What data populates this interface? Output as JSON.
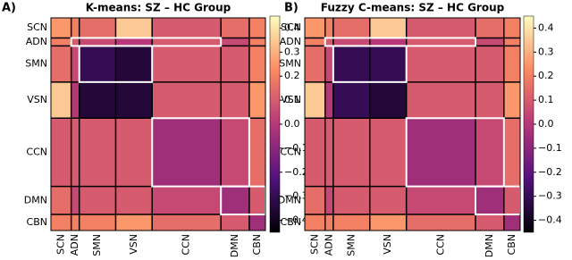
{
  "chart_data": [
    {
      "type": "heatmap",
      "panel_label": "A)",
      "title": "K-means: SZ – HC Group",
      "categories": [
        "SCN",
        "ADN",
        "SMN",
        "VSN",
        "CCN",
        "DMN",
        "CBN"
      ],
      "values": [
        [
          0.25,
          0.2,
          0.15,
          0.35,
          0.1,
          0.15,
          0.2
        ],
        [
          0.2,
          0.1,
          0.05,
          0.0,
          0.1,
          0.05,
          0.2
        ],
        [
          0.15,
          0.05,
          -0.3,
          -0.35,
          0.1,
          0.1,
          0.2
        ],
        [
          0.35,
          0.0,
          -0.35,
          -0.35,
          0.1,
          0.1,
          0.25
        ],
        [
          0.1,
          0.1,
          0.1,
          0.1,
          -0.05,
          0.05,
          0.15
        ],
        [
          0.15,
          0.05,
          0.1,
          0.1,
          0.05,
          -0.05,
          0.1
        ],
        [
          0.2,
          0.2,
          0.2,
          0.25,
          0.15,
          0.1,
          -0.05
        ]
      ],
      "zlim": [
        -0.45,
        0.45
      ],
      "zticks": [
        0.4,
        0.3,
        0.2,
        0.1,
        {
          "value": 0,
          "label": "0.0"
        },
        {
          "value": -0.1,
          "label": "−0.1"
        },
        {
          "value": -0.2,
          "label": "−0.2"
        },
        {
          "value": -0.3,
          "label": "−0.3"
        },
        {
          "value": -0.4,
          "label": "−0.4"
        }
      ]
    },
    {
      "type": "heatmap",
      "panel_label": "B)",
      "title": "Fuzzy C-means: SZ – HC Group",
      "categories": [
        "SCN",
        "ADN",
        "SMN",
        "VSN",
        "CCN",
        "DMN",
        "CBN"
      ],
      "values": [
        [
          0.25,
          0.2,
          0.15,
          0.35,
          0.1,
          0.15,
          0.2
        ],
        [
          0.2,
          0.1,
          0.05,
          0.0,
          0.1,
          0.05,
          0.2
        ],
        [
          0.15,
          0.05,
          -0.3,
          -0.3,
          0.1,
          0.1,
          0.2
        ],
        [
          0.35,
          0.0,
          -0.3,
          -0.35,
          0.1,
          0.1,
          0.25
        ],
        [
          0.1,
          0.1,
          0.1,
          0.1,
          -0.05,
          0.05,
          0.15
        ],
        [
          0.15,
          0.05,
          0.1,
          0.1,
          0.05,
          -0.05,
          0.1
        ],
        [
          0.2,
          0.2,
          0.2,
          0.25,
          0.15,
          0.1,
          -0.05
        ]
      ],
      "zlim": [
        -0.45,
        0.45
      ],
      "zticks": [
        0.4,
        0.3,
        0.2,
        0.1,
        {
          "value": 0,
          "label": "0.0"
        },
        {
          "value": -0.1,
          "label": "−0.1"
        },
        {
          "value": -0.2,
          "label": "−0.2"
        },
        {
          "value": -0.3,
          "label": "−0.3"
        },
        {
          "value": -0.4,
          "label": "−0.4"
        }
      ]
    }
  ]
}
